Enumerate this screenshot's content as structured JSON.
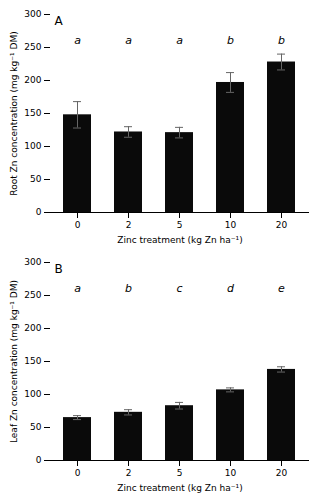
{
  "chart_data": [
    {
      "type": "bar",
      "title": "A",
      "categories": [
        "0",
        "2",
        "5",
        "10",
        "20"
      ],
      "values": [
        148,
        122,
        121,
        197,
        228
      ],
      "errors": [
        20,
        8,
        8,
        15,
        12
      ],
      "annotations": [
        {
          "text": "a",
          "x": "0",
          "y": 255
        },
        {
          "text": "a",
          "x": "2",
          "y": 255
        },
        {
          "text": "a",
          "x": "5",
          "y": 255
        },
        {
          "text": "b",
          "x": "10",
          "y": 255
        },
        {
          "text": "b",
          "x": "20",
          "y": 255
        }
      ],
      "ylabel": "Root Zn concentration (mg kg⁻¹ DM)",
      "xlabel": "Zinc treatment (kg Zn ha⁻¹)",
      "color": "#0a0a0a",
      "error_color": "#666666",
      "ylim": [
        0,
        300
      ],
      "yticks": [
        0,
        50,
        100,
        150,
        200,
        250,
        300
      ],
      "grid": false
    },
    {
      "type": "bar",
      "title": "B",
      "categories": [
        "0",
        "2",
        "5",
        "10",
        "20"
      ],
      "values": [
        65,
        73,
        83,
        107,
        138
      ],
      "errors": [
        3,
        4,
        5,
        3,
        4
      ],
      "annotations": [
        {
          "text": "a",
          "x": "0",
          "y": 255
        },
        {
          "text": "b",
          "x": "2",
          "y": 255
        },
        {
          "text": "c",
          "x": "5",
          "y": 255
        },
        {
          "text": "d",
          "x": "10",
          "y": 255
        },
        {
          "text": "e",
          "x": "20",
          "y": 255
        }
      ],
      "ylabel": "Leaf Zn concentration (mg kg⁻¹ DM)",
      "xlabel": "Zinc treatment (kg Zn ha⁻¹)",
      "color": "#0a0a0a",
      "error_color": "#666666",
      "ylim": [
        0,
        300
      ],
      "yticks": [
        0,
        50,
        100,
        150,
        200,
        250,
        300
      ],
      "grid": false
    }
  ]
}
